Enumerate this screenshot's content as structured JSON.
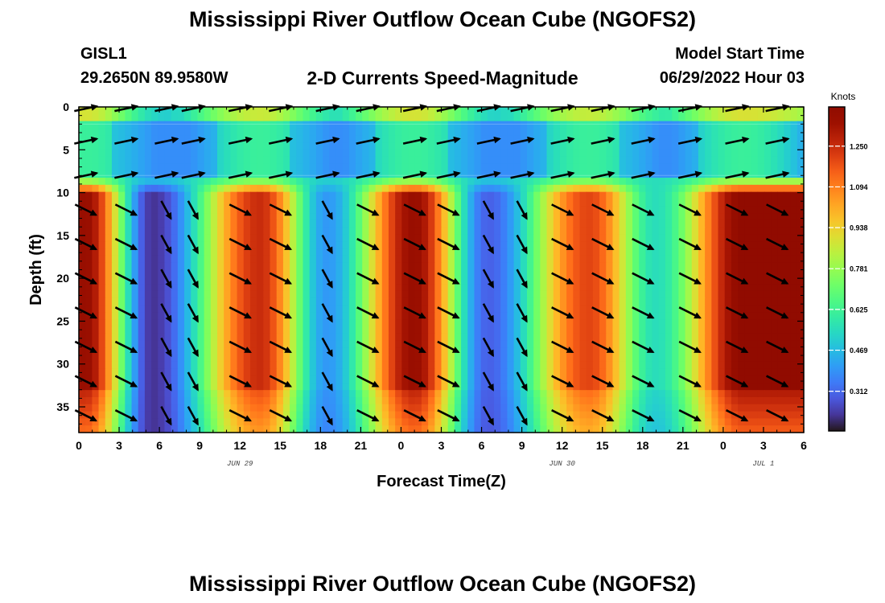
{
  "header": {
    "title": "Mississippi River Outflow Ocean Cube (NGOFS2)",
    "station_id": "GISL1",
    "station_location": "29.2650N  89.9580W",
    "variable": "2-D Currents Speed-Magnitude",
    "start_label": "Model Start Time",
    "start_value": "06/29/2022 Hour 03"
  },
  "footer": {
    "title": "Mississippi River Outflow Ocean Cube (NGOFS2)"
  },
  "chart_data": {
    "type": "heatmap",
    "xlabel": "Forecast Time(Z)",
    "ylabel": "Depth (ft)",
    "x_range_hours": [
      0,
      54
    ],
    "y_range_ft": [
      0,
      38
    ],
    "y_inverted": true,
    "x_tick_labels": [
      "0",
      "3",
      "6",
      "9",
      "12",
      "15",
      "18",
      "21",
      "0",
      "3",
      "6",
      "9",
      "12",
      "15",
      "18",
      "21",
      "0",
      "3",
      "6"
    ],
    "y_tick_labels": [
      "0",
      "5",
      "10",
      "15",
      "20",
      "25",
      "30",
      "35"
    ],
    "date_labels": [
      {
        "text": "JUN 29",
        "hour": 12
      },
      {
        "text": "JUN 30",
        "hour": 36
      },
      {
        "text": "JUL 1",
        "hour": 51
      }
    ],
    "colorbar": {
      "unit": "Knots",
      "ticks": [
        "1.250",
        "1.094",
        "0.938",
        "0.781",
        "0.625",
        "0.469",
        "0.312"
      ],
      "min": 0.16,
      "max": 1.4,
      "colormap": "turbo"
    },
    "speed_maxima": [
      {
        "hour": 0.5,
        "speed": 1.35
      },
      {
        "hour": 13.5,
        "speed": 1.25
      },
      {
        "hour": 25,
        "speed": 1.35
      },
      {
        "hour": 38,
        "speed": 1.2
      },
      {
        "hour": 49.5,
        "speed": 1.38
      }
    ],
    "speed_minima": [
      {
        "hour": 5.5,
        "speed": 0.22
      },
      {
        "hour": 18.5,
        "speed": 0.4
      },
      {
        "hour": 30.5,
        "speed": 0.3
      },
      {
        "hour": 43,
        "speed": 0.55
      }
    ],
    "layer_boundaries_ft": [
      2,
      8
    ],
    "vector_columns_hours": [
      0.5,
      3.5,
      6.5,
      8.5,
      12,
      15,
      18.5,
      21.5,
      25,
      27.5,
      30.5,
      33,
      36,
      39,
      42,
      45.5,
      49,
      52
    ],
    "vector_depths_ft": [
      0.2,
      4,
      8,
      12,
      16,
      20,
      24,
      28,
      32,
      36
    ]
  }
}
